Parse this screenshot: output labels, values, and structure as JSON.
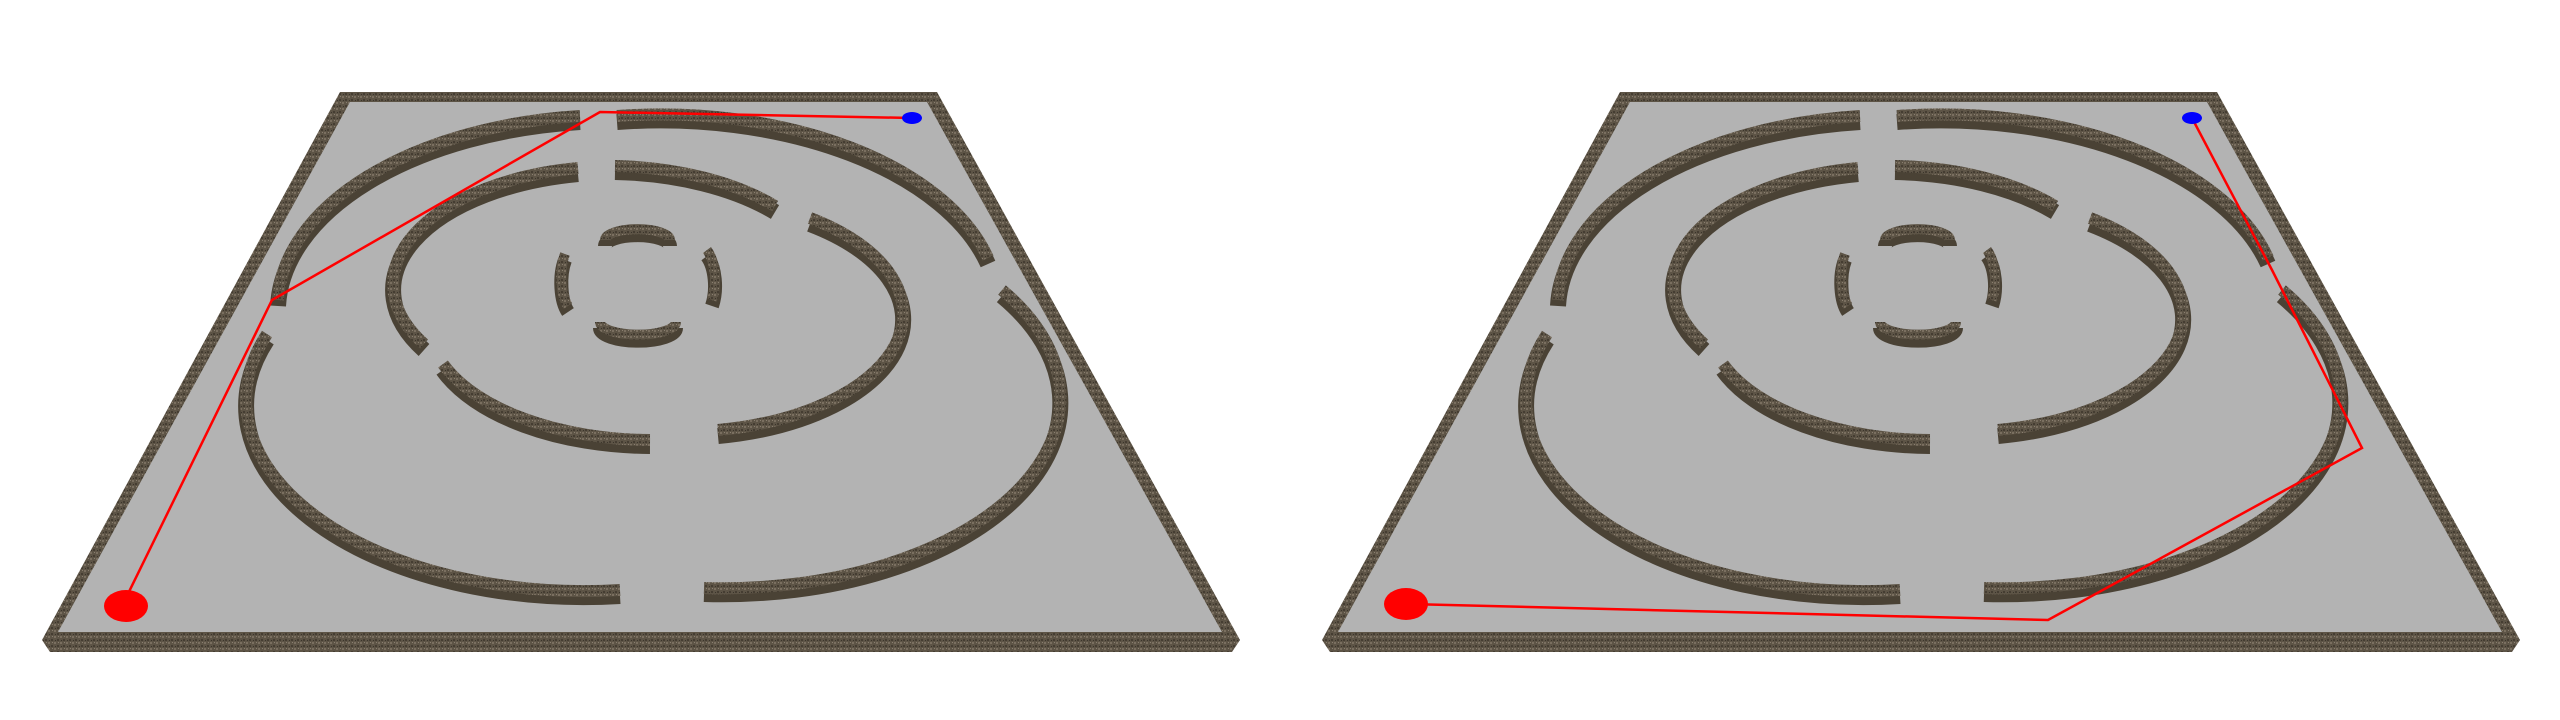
{
  "colors": {
    "background": "#ffffff",
    "floor": "#b3b3b3",
    "wall_top": "#6f6555",
    "wall_side": "#4a4235",
    "path": "#ff0000",
    "start_marker": "#ff0000",
    "goal_marker": "#0000ff"
  },
  "panels": [
    {
      "name": "left-maze-panel",
      "start_marker": "red-start-marker",
      "goal_marker": "blue-goal-marker",
      "path": "red-path-direct"
    },
    {
      "name": "right-maze-panel",
      "start_marker": "red-start-marker",
      "goal_marker": "blue-goal-marker",
      "path": "red-path-around"
    }
  ]
}
